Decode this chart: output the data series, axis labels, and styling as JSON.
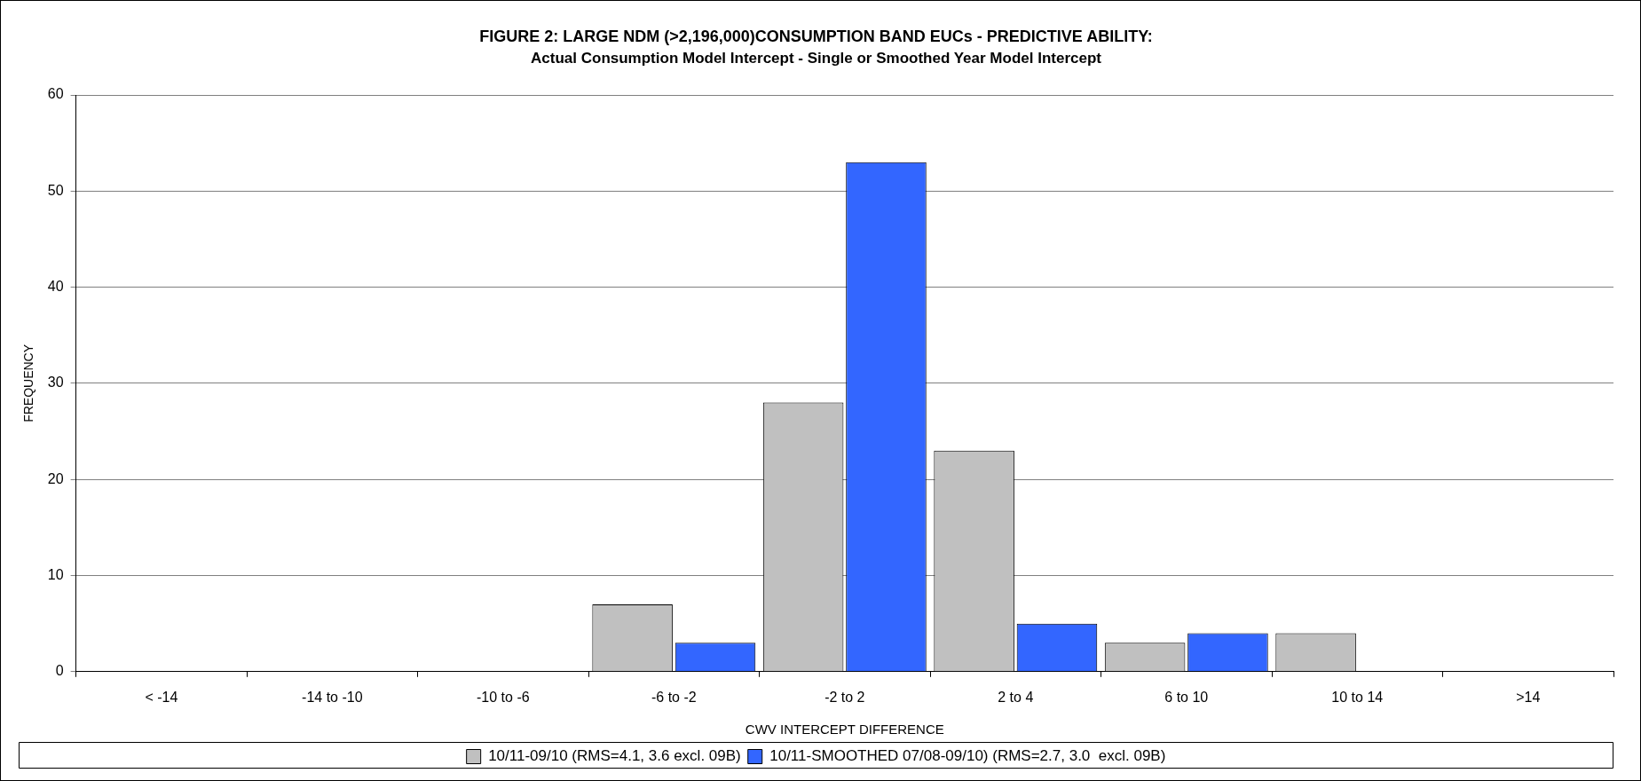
{
  "chart_data": {
    "type": "bar",
    "title": "FIGURE 2: LARGE NDM (>2,196,000)CONSUMPTION BAND EUCs - PREDICTIVE ABILITY:",
    "subtitle": "Actual Consumption Model Intercept - Single or Smoothed Year Model Intercept",
    "xlabel": "CWV INTERCEPT DIFFERENCE",
    "ylabel": "FREQUENCY",
    "categories": [
      "< -14",
      "-14 to -10",
      "-10 to -6",
      "-6 to -2",
      "-2 to 2",
      "2 to 4",
      "6 to 10",
      "10 to 14",
      ">14"
    ],
    "series": [
      {
        "name": "10/11-09/10 (RMS=4.1, 3.6 excl. 09B)",
        "color": "#c0c0c0",
        "values": [
          0,
          0,
          0,
          7,
          28,
          23,
          3,
          4,
          0
        ]
      },
      {
        "name": "10/11-SMOOTHED 07/08-09/10) (RMS=2.7, 3.0  excl. 09B)",
        "color": "#3366ff",
        "values": [
          0,
          0,
          0,
          3,
          53,
          5,
          4,
          0,
          0
        ]
      }
    ],
    "ylim": [
      0,
      60
    ],
    "yticks": [
      0,
      10,
      20,
      30,
      40,
      50,
      60
    ],
    "grid": "y",
    "legend": "bottom"
  }
}
